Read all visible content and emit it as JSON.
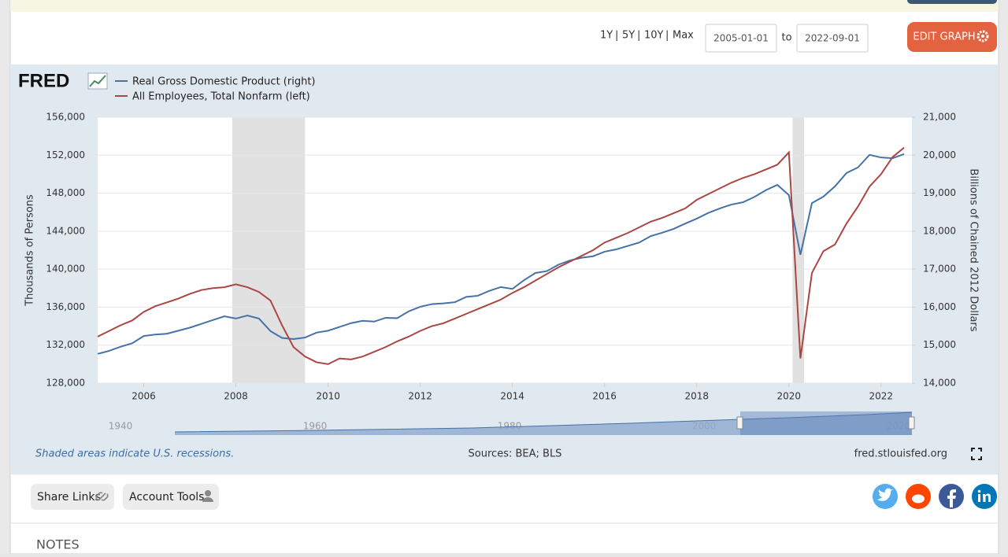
{
  "toolbar": {
    "ranges": [
      "1Y",
      "5Y",
      "10Y",
      "Max"
    ],
    "start_date": "2005-01-01",
    "to": "to",
    "end_date": "2022-09-01",
    "edit_button": "EDIT GRAPH"
  },
  "brand": "FRED",
  "chart_data": {
    "type": "line",
    "y_label": "Thousands of Persons",
    "y2_label": "Billions of Chained 2012 Dollars",
    "x": [
      2005,
      2005.25,
      2005.5,
      2005.75,
      2006,
      2006.25,
      2006.5,
      2006.75,
      2007,
      2007.25,
      2007.5,
      2007.75,
      2008,
      2008.25,
      2008.5,
      2008.75,
      2009,
      2009.25,
      2009.5,
      2009.75,
      2010,
      2010.25,
      2010.5,
      2010.75,
      2011,
      2011.25,
      2011.5,
      2011.75,
      2012,
      2012.25,
      2012.5,
      2012.75,
      2013,
      2013.25,
      2013.5,
      2013.75,
      2014,
      2014.25,
      2014.5,
      2014.75,
      2015,
      2015.25,
      2015.5,
      2015.75,
      2016,
      2016.25,
      2016.5,
      2016.75,
      2017,
      2017.25,
      2017.5,
      2017.75,
      2018,
      2018.25,
      2018.5,
      2018.75,
      2019,
      2019.25,
      2019.5,
      2019.75,
      2020,
      2020.25,
      2020.5,
      2020.75,
      2021,
      2021.25,
      2021.5,
      2021.75,
      2022,
      2022.25,
      2022.5
    ],
    "series": [
      {
        "name": "Real Gross Domestic Product (right)",
        "color": "#4572a7",
        "axis": "y2",
        "values": [
          14770,
          14850,
          14960,
          15050,
          15240,
          15280,
          15300,
          15380,
          15460,
          15560,
          15660,
          15760,
          15700,
          15780,
          15700,
          15370,
          15190,
          15160,
          15200,
          15330,
          15380,
          15480,
          15580,
          15640,
          15620,
          15720,
          15710,
          15890,
          16010,
          16080,
          16100,
          16130,
          16270,
          16300,
          16430,
          16530,
          16480,
          16710,
          16900,
          16950,
          17120,
          17230,
          17300,
          17340,
          17460,
          17520,
          17610,
          17700,
          17870,
          17960,
          18060,
          18200,
          18330,
          18480,
          18600,
          18700,
          18760,
          18900,
          19080,
          19220,
          18950,
          17380,
          18740,
          18910,
          19180,
          19530,
          19680,
          20010,
          19940,
          19920,
          20030
        ]
      },
      {
        "name": "All Employees, Total Nonfarm (left)",
        "color": "#aa4643",
        "values": [
          132900,
          133500,
          134100,
          134600,
          135500,
          136100,
          136500,
          136900,
          137400,
          137800,
          138000,
          138100,
          138400,
          138100,
          137600,
          136700,
          134100,
          131800,
          130800,
          130200,
          130000,
          130600,
          130500,
          130800,
          131300,
          131800,
          132400,
          132900,
          133500,
          134000,
          134300,
          134800,
          135300,
          135800,
          136300,
          136800,
          137500,
          138100,
          138800,
          139500,
          140200,
          140800,
          141400,
          142000,
          142800,
          143300,
          143800,
          144400,
          145000,
          145400,
          145900,
          146400,
          147300,
          147900,
          148500,
          149100,
          149600,
          150000,
          150500,
          151000,
          152300,
          130600,
          139600,
          141900,
          142600,
          144800,
          146600,
          148700,
          150000,
          151800,
          152800
        ]
      }
    ],
    "recessions": [
      {
        "start": 2007.92,
        "end": 2009.5
      },
      {
        "start": 2020.08,
        "end": 2020.33
      }
    ],
    "xlim": [
      2005,
      2022.67
    ],
    "xticks": [
      2006,
      2008,
      2010,
      2012,
      2014,
      2016,
      2018,
      2020,
      2022
    ],
    "ylim": [
      128000,
      156000
    ],
    "yticks": [
      {
        "value": 128000,
        "label": "128,000"
      },
      {
        "value": 132000,
        "label": "132,000"
      },
      {
        "value": 136000,
        "label": "136,000"
      },
      {
        "value": 140000,
        "label": "140,000"
      },
      {
        "value": 144000,
        "label": "144,000"
      },
      {
        "value": 148000,
        "label": "148,000"
      },
      {
        "value": 152000,
        "label": "152,000"
      },
      {
        "value": 156000,
        "label": "156,000"
      }
    ],
    "y2lim": [
      14000,
      21000
    ],
    "y2ticks": [
      {
        "value": 14000,
        "label": "14,000"
      },
      {
        "value": 15000,
        "label": "15,000"
      },
      {
        "value": 16000,
        "label": "16,000"
      },
      {
        "value": 17000,
        "label": "17,000"
      },
      {
        "value": 18000,
        "label": "18,000"
      },
      {
        "value": 19000,
        "label": "19,000"
      },
      {
        "value": 20000,
        "label": "20,000"
      },
      {
        "value": 21000,
        "label": "21,000"
      }
    ],
    "grid": true
  },
  "navigator": {
    "labels": [
      "1940",
      "1960",
      "1980",
      "2000",
      "2020"
    ]
  },
  "footer": {
    "note": "Shaded areas indicate U.S. recessions.",
    "sources": "Sources: BEA; BLS",
    "site": "fred.stlouisfed.org"
  },
  "actions": {
    "share": "Share Links",
    "account": "Account Tools"
  },
  "notes_heading": "NOTES"
}
